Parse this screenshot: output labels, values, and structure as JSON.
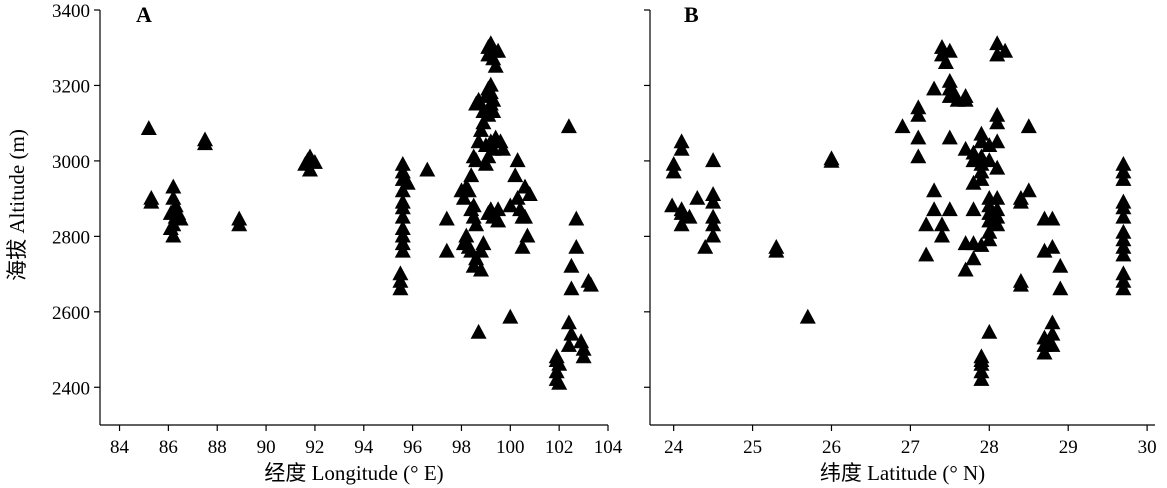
{
  "figure": {
    "ylabel": "海拔 Altitude (m)"
  },
  "chart_data": [
    {
      "type": "scatter",
      "panel_label": "A",
      "xlabel": "经度 Longitude (° E)",
      "ylabel": "海拔 Altitude (m)",
      "xlim": [
        83.2,
        104
      ],
      "ylim": [
        2300,
        3400
      ],
      "xticks": [
        "84",
        "86",
        "88",
        "90",
        "92",
        "94",
        "96",
        "98",
        "100",
        "102",
        "104"
      ],
      "yticks": [
        "2400",
        "2600",
        "2800",
        "3000",
        "3200",
        "3400"
      ],
      "marker": "triangle",
      "marker_color": "#000000",
      "points": [
        [
          85.2,
          3085
        ],
        [
          85.3,
          2900
        ],
        [
          85.3,
          2890
        ],
        [
          86.2,
          2930
        ],
        [
          86.2,
          2900
        ],
        [
          86.3,
          2880
        ],
        [
          86.1,
          2860
        ],
        [
          86.4,
          2860
        ],
        [
          86.3,
          2850
        ],
        [
          86.5,
          2845
        ],
        [
          86.2,
          2830
        ],
        [
          86.1,
          2820
        ],
        [
          86.2,
          2800
        ],
        [
          87.5,
          3055
        ],
        [
          87.5,
          3045
        ],
        [
          88.9,
          2845
        ],
        [
          88.9,
          2830
        ],
        [
          91.8,
          3010
        ],
        [
          91.7,
          3000
        ],
        [
          92.0,
          2995
        ],
        [
          91.6,
          2990
        ],
        [
          91.8,
          2975
        ],
        [
          95.6,
          2990
        ],
        [
          95.6,
          2970
        ],
        [
          95.6,
          2950
        ],
        [
          95.8,
          2940
        ],
        [
          95.6,
          2920
        ],
        [
          95.6,
          2890
        ],
        [
          95.6,
          2875
        ],
        [
          95.6,
          2850
        ],
        [
          95.6,
          2820
        ],
        [
          95.6,
          2800
        ],
        [
          95.6,
          2780
        ],
        [
          95.6,
          2760
        ],
        [
          95.5,
          2700
        ],
        [
          95.5,
          2680
        ],
        [
          95.5,
          2660
        ],
        [
          96.6,
          2975
        ],
        [
          97.4,
          2845
        ],
        [
          97.4,
          2760
        ],
        [
          98.0,
          2920
        ],
        [
          98.1,
          2900
        ],
        [
          98.2,
          2930
        ],
        [
          98.4,
          2960
        ],
        [
          98.3,
          2920
        ],
        [
          98.5,
          2880
        ],
        [
          98.4,
          2870
        ],
        [
          98.5,
          2850
        ],
        [
          98.6,
          2830
        ],
        [
          98.2,
          2800
        ],
        [
          98.1,
          2780
        ],
        [
          98.3,
          2770
        ],
        [
          98.4,
          2760
        ],
        [
          98.6,
          2740
        ],
        [
          98.5,
          2720
        ],
        [
          98.7,
          2545
        ],
        [
          98.8,
          2710
        ],
        [
          98.8,
          2760
        ],
        [
          98.9,
          2780
        ],
        [
          98.6,
          3000
        ],
        [
          98.5,
          3010
        ],
        [
          98.7,
          3050
        ],
        [
          98.8,
          3080
        ],
        [
          98.6,
          3150
        ],
        [
          98.7,
          3160
        ],
        [
          98.9,
          3100
        ],
        [
          98.9,
          3130
        ],
        [
          99.0,
          3170
        ],
        [
          99.1,
          3190
        ],
        [
          99.2,
          3200
        ],
        [
          99.2,
          3180
        ],
        [
          99.3,
          3160
        ],
        [
          99.2,
          3150
        ],
        [
          99.1,
          3120
        ],
        [
          99.3,
          3130
        ],
        [
          99.0,
          3040
        ],
        [
          99.2,
          3050
        ],
        [
          99.3,
          3030
        ],
        [
          99.4,
          3060
        ],
        [
          99.1,
          3010
        ],
        [
          99.0,
          2990
        ],
        [
          99.2,
          2870
        ],
        [
          99.1,
          2860
        ],
        [
          99.5,
          2870
        ],
        [
          99.5,
          2840
        ],
        [
          99.3,
          2850
        ],
        [
          99.6,
          3050
        ],
        [
          99.7,
          3030
        ],
        [
          99.1,
          3280
        ],
        [
          99.1,
          3300
        ],
        [
          99.2,
          3310
        ],
        [
          99.3,
          3290
        ],
        [
          99.3,
          3270
        ],
        [
          99.4,
          3250
        ],
        [
          99.5,
          3290
        ],
        [
          100.0,
          2585
        ],
        [
          100.0,
          2880
        ],
        [
          100.2,
          2960
        ],
        [
          100.3,
          3000
        ],
        [
          100.3,
          2900
        ],
        [
          100.4,
          2870
        ],
        [
          100.5,
          2850
        ],
        [
          100.6,
          2930
        ],
        [
          100.6,
          2850
        ],
        [
          100.8,
          2910
        ],
        [
          100.5,
          2770
        ],
        [
          100.7,
          2800
        ],
        [
          102.4,
          3090
        ],
        [
          102.4,
          2570
        ],
        [
          102.5,
          2540
        ],
        [
          102.4,
          2510
        ],
        [
          102.5,
          2720
        ],
        [
          102.5,
          2660
        ],
        [
          102.7,
          2845
        ],
        [
          102.7,
          2770
        ],
        [
          101.9,
          2480
        ],
        [
          101.9,
          2470
        ],
        [
          102.0,
          2460
        ],
        [
          101.9,
          2440
        ],
        [
          101.9,
          2420
        ],
        [
          102.0,
          2410
        ],
        [
          102.9,
          2520
        ],
        [
          103.0,
          2500
        ],
        [
          103.0,
          2480
        ],
        [
          103.2,
          2680
        ],
        [
          103.3,
          2670
        ]
      ]
    },
    {
      "type": "scatter",
      "panel_label": "B",
      "xlabel": "纬度 Latitude (° N)",
      "ylabel": "",
      "xlim": [
        23.7,
        30.1
      ],
      "ylim": [
        2300,
        3400
      ],
      "xticks": [
        "24",
        "25",
        "26",
        "27",
        "28",
        "29",
        "30"
      ],
      "yticks": [],
      "marker": "triangle",
      "marker_color": "#000000",
      "points": [
        [
          24.0,
          2990
        ],
        [
          24.0,
          2970
        ],
        [
          24.1,
          3050
        ],
        [
          24.1,
          3030
        ],
        [
          23.98,
          2880
        ],
        [
          24.1,
          2870
        ],
        [
          24.1,
          2860
        ],
        [
          24.2,
          2850
        ],
        [
          24.1,
          2830
        ],
        [
          24.3,
          2900
        ],
        [
          24.4,
          2770
        ],
        [
          24.5,
          2910
        ],
        [
          24.5,
          2890
        ],
        [
          24.5,
          3000
        ],
        [
          24.5,
          2850
        ],
        [
          24.5,
          2830
        ],
        [
          24.5,
          2800
        ],
        [
          25.3,
          2770
        ],
        [
          25.3,
          2760
        ],
        [
          25.7,
          2585
        ],
        [
          26.0,
          3005
        ],
        [
          26.0,
          2998
        ],
        [
          26.9,
          3090
        ],
        [
          27.1,
          3140
        ],
        [
          27.1,
          3120
        ],
        [
          27.1,
          3060
        ],
        [
          27.1,
          3010
        ],
        [
          27.2,
          2830
        ],
        [
          27.2,
          2750
        ],
        [
          27.3,
          3190
        ],
        [
          27.3,
          2920
        ],
        [
          27.4,
          3280
        ],
        [
          27.4,
          3300
        ],
        [
          27.45,
          3260
        ],
        [
          27.5,
          3290
        ],
        [
          27.5,
          3210
        ],
        [
          27.5,
          3190
        ],
        [
          27.5,
          3170
        ],
        [
          27.55,
          3180
        ],
        [
          27.6,
          3160
        ],
        [
          27.7,
          3160
        ],
        [
          27.7,
          3170
        ],
        [
          27.3,
          2870
        ],
        [
          27.4,
          2830
        ],
        [
          27.4,
          2800
        ],
        [
          27.5,
          2870
        ],
        [
          27.5,
          3060
        ],
        [
          27.7,
          3030
        ],
        [
          27.8,
          3000
        ],
        [
          27.8,
          3020
        ],
        [
          27.7,
          2780
        ],
        [
          27.7,
          2710
        ],
        [
          27.8,
          2740
        ],
        [
          27.8,
          2780
        ],
        [
          27.9,
          2775
        ],
        [
          27.8,
          2870
        ],
        [
          27.8,
          2940
        ],
        [
          27.9,
          2950
        ],
        [
          27.9,
          2970
        ],
        [
          27.9,
          2990
        ],
        [
          27.9,
          3010
        ],
        [
          27.9,
          3050
        ],
        [
          27.9,
          3070
        ],
        [
          28.0,
          3040
        ],
        [
          28.0,
          3000
        ],
        [
          28.0,
          2900
        ],
        [
          28.0,
          2880
        ],
        [
          28.0,
          2860
        ],
        [
          28.0,
          2840
        ],
        [
          28.0,
          2810
        ],
        [
          28.0,
          2790
        ],
        [
          28.1,
          2870
        ],
        [
          28.1,
          2850
        ],
        [
          28.1,
          2830
        ],
        [
          28.1,
          2900
        ],
        [
          28.1,
          2980
        ],
        [
          28.1,
          3050
        ],
        [
          28.1,
          3100
        ],
        [
          28.1,
          3120
        ],
        [
          28.1,
          3280
        ],
        [
          28.1,
          3310
        ],
        [
          28.2,
          3290
        ],
        [
          28.0,
          2545
        ],
        [
          27.9,
          2480
        ],
        [
          27.9,
          2470
        ],
        [
          27.9,
          2460
        ],
        [
          27.9,
          2440
        ],
        [
          27.9,
          2420
        ],
        [
          28.5,
          3090
        ],
        [
          28.4,
          2900
        ],
        [
          28.4,
          2890
        ],
        [
          28.5,
          2920
        ],
        [
          28.4,
          2680
        ],
        [
          28.4,
          2670
        ],
        [
          28.7,
          2845
        ],
        [
          28.7,
          2760
        ],
        [
          28.8,
          2770
        ],
        [
          28.8,
          2845
        ],
        [
          28.9,
          2720
        ],
        [
          28.9,
          2660
        ],
        [
          28.7,
          2530
        ],
        [
          28.7,
          2510
        ],
        [
          28.7,
          2490
        ],
        [
          28.8,
          2570
        ],
        [
          28.8,
          2540
        ],
        [
          28.8,
          2510
        ],
        [
          29.7,
          2990
        ],
        [
          29.7,
          2970
        ],
        [
          29.7,
          2950
        ],
        [
          29.7,
          2890
        ],
        [
          29.7,
          2875
        ],
        [
          29.7,
          2850
        ],
        [
          29.7,
          2810
        ],
        [
          29.7,
          2790
        ],
        [
          29.7,
          2770
        ],
        [
          29.7,
          2750
        ],
        [
          29.7,
          2700
        ],
        [
          29.7,
          2680
        ],
        [
          29.7,
          2660
        ]
      ]
    }
  ]
}
